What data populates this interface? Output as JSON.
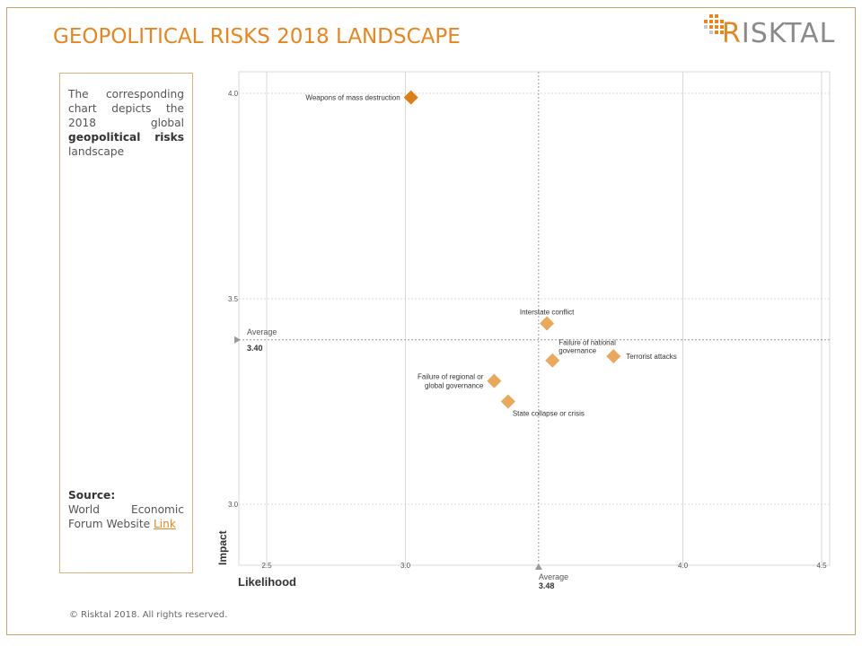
{
  "slide": {
    "title": "GEOPOLITICAL RISKS 2018 LANDSCAPE",
    "logo_text": "ISKTAL",
    "logo_letter": "R",
    "description": {
      "part1": "The corresponding chart depicts the 2018 global ",
      "bold": "geopolitical risks",
      "part2": " landscape"
    },
    "source": {
      "label": "Source:",
      "text": "World Economic Forum Website ",
      "link_label": "Link"
    },
    "footer": "© Risktal 2018. All rights reserved."
  },
  "colors": {
    "accent": "#e8851f",
    "marker_light": "#e9a85a",
    "marker_dark": "#dd7f14",
    "grid": "#d9d9d9",
    "axis": "#bfbfbf",
    "average_line": "#9a9a9a"
  },
  "chart_data": {
    "type": "scatter",
    "title": "",
    "xlabel": "Likelihood",
    "ylabel": "Impact",
    "xlim": [
      2.5,
      4.5
    ],
    "ylim": [
      2.85,
      4.05
    ],
    "x_ticks": [
      "2.5",
      "3.0",
      "4.0",
      "4.5"
    ],
    "x_tick_values": [
      2.5,
      3.0,
      4.0,
      4.5
    ],
    "y_ticks": [
      "3.0",
      "3.5",
      "4.0"
    ],
    "y_tick_values": [
      3.0,
      3.5,
      4.0
    ],
    "grid": true,
    "averages": {
      "x": {
        "label": "Average",
        "value_label": "3.48",
        "value": 3.48
      },
      "y": {
        "label": "Average",
        "value_label": "3.40",
        "value": 3.4
      }
    },
    "points": [
      {
        "label": [
          "Weapons of mass destruction"
        ],
        "x": 3.02,
        "y": 3.99,
        "color": "dark",
        "anchor": "left"
      },
      {
        "label": [
          "Interstate conflict"
        ],
        "x": 3.51,
        "y": 3.44,
        "color": "light",
        "anchor": "above"
      },
      {
        "label": [
          "Failure of national",
          "governance"
        ],
        "x": 3.53,
        "y": 3.35,
        "color": "light",
        "anchor": "above-right"
      },
      {
        "label": [
          "Terrorist attacks"
        ],
        "x": 3.75,
        "y": 3.36,
        "color": "light",
        "anchor": "right"
      },
      {
        "label": [
          "Failure of regional or",
          "global governance"
        ],
        "x": 3.32,
        "y": 3.3,
        "color": "light",
        "anchor": "left"
      },
      {
        "label": [
          "State collapse or crisis"
        ],
        "x": 3.37,
        "y": 3.25,
        "color": "light",
        "anchor": "below-right"
      }
    ]
  }
}
